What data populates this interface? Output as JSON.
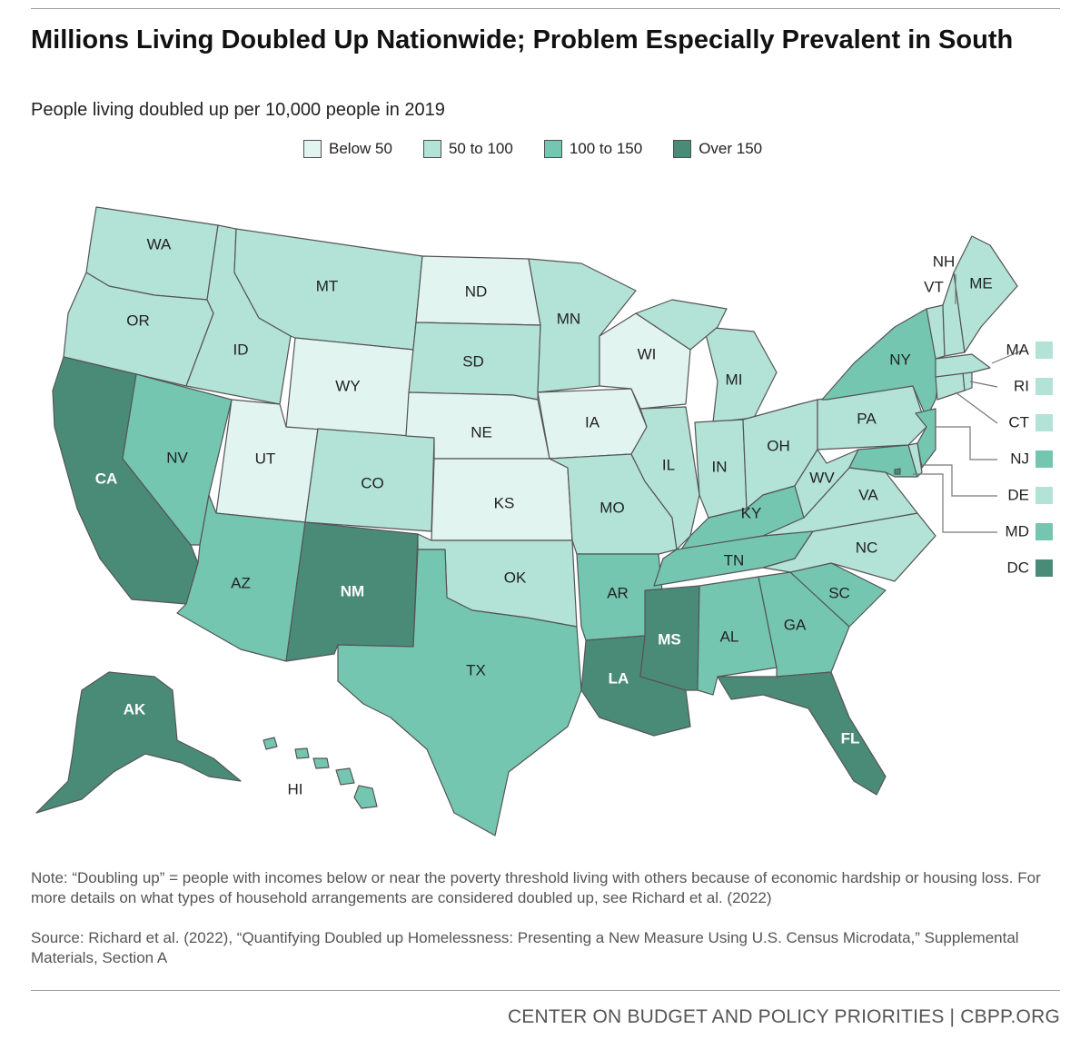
{
  "header": {
    "title": "Millions Living Doubled Up Nationwide; Problem Especially Prevalent in South",
    "subtitle": "People living doubled up per 10,000 people in 2019"
  },
  "legend": [
    {
      "label": "Below 50",
      "color": "#e2f4ef"
    },
    {
      "label": "50 to 100",
      "color": "#b3e2d6"
    },
    {
      "label": "100 to 150",
      "color": "#74c6b0"
    },
    {
      "label": "Over 150",
      "color": "#4a8b78"
    }
  ],
  "map_data": {
    "type": "choropleth",
    "bins": [
      "Below 50",
      "50 to 100",
      "100 to 150",
      "Over 150"
    ],
    "states": {
      "WA": 1,
      "OR": 1,
      "CA": 3,
      "ID": 1,
      "NV": 2,
      "AZ": 2,
      "UT": 0,
      "MT": 1,
      "WY": 0,
      "CO": 1,
      "NM": 3,
      "ND": 0,
      "SD": 1,
      "NE": 0,
      "KS": 0,
      "OK": 1,
      "TX": 2,
      "MN": 1,
      "IA": 0,
      "MO": 1,
      "AR": 2,
      "LA": 3,
      "WI": 0,
      "IL": 1,
      "MS": 3,
      "MI": 1,
      "IN": 1,
      "KY": 2,
      "TN": 2,
      "AL": 2,
      "OH": 1,
      "GA": 2,
      "FL": 3,
      "SC": 2,
      "NC": 1,
      "VA": 1,
      "WV": 1,
      "PA": 1,
      "NY": 2,
      "ME": 1,
      "NH": 1,
      "VT": 1,
      "MA": 1,
      "RI": 1,
      "CT": 1,
      "NJ": 2,
      "DE": 1,
      "MD": 2,
      "DC": 3,
      "AK": 3,
      "HI": 2
    }
  },
  "notes": {
    "note": "Note: “Doubling up” = people with incomes below or near the poverty threshold living with others because of economic hardship or housing loss. For more details on what types of household arrangements are considered doubled up, see Richard et al. (2022)",
    "source": "Source: Richard et al. (2022), “Quantifying Doubled up Homelessness: Presenting a New Measure Using U.S. Census Microdata,” Supplemental Materials, Section A"
  },
  "footer": "CENTER ON BUDGET AND POLICY PRIORITIES | CBPP.ORG"
}
